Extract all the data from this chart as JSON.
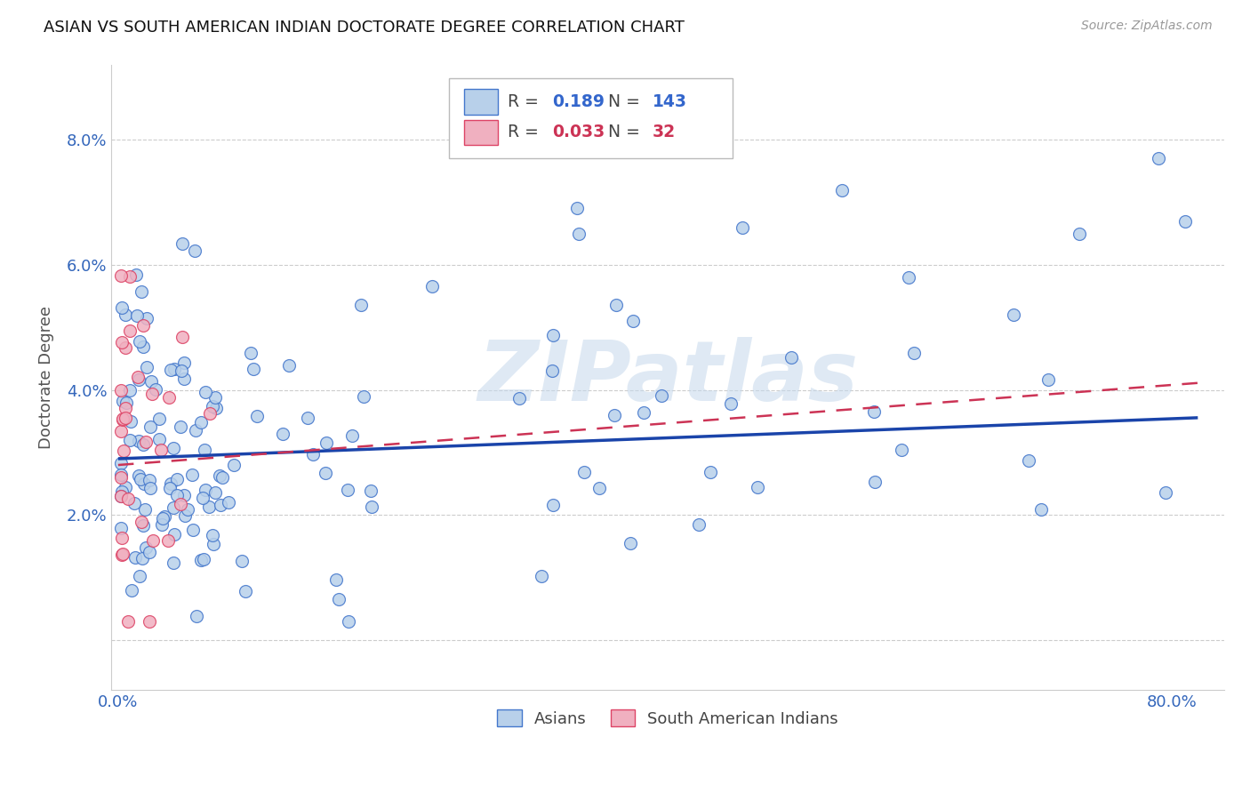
{
  "title": "ASIAN VS SOUTH AMERICAN INDIAN DOCTORATE DEGREE CORRELATION CHART",
  "source": "Source: ZipAtlas.com",
  "ylabel": "Doctorate Degree",
  "xlim": [
    -0.005,
    0.84
  ],
  "ylim": [
    -0.008,
    0.092
  ],
  "yticks": [
    0.0,
    0.02,
    0.04,
    0.06,
    0.08
  ],
  "ytick_labels": [
    "",
    "2.0%",
    "4.0%",
    "6.0%",
    "8.0%"
  ],
  "xtick_positions": [
    0.0,
    0.1,
    0.2,
    0.3,
    0.4,
    0.5,
    0.6,
    0.7,
    0.8
  ],
  "xtick_labels": [
    "0.0%",
    "",
    "",
    "",
    "",
    "",
    "",
    "",
    "80.0%"
  ],
  "asian_R": 0.189,
  "asian_N": 143,
  "sai_R": 0.033,
  "sai_N": 32,
  "asian_face_color": "#b8d0ea",
  "asian_edge_color": "#4477cc",
  "asian_line_color": "#1a44aa",
  "sai_face_color": "#f0b0c0",
  "sai_edge_color": "#dd4466",
  "sai_line_color": "#cc3355",
  "legend_blue": "#3366cc",
  "legend_pink": "#cc3355",
  "watermark_color": "#c5d8ec",
  "background_color": "#ffffff",
  "grid_color": "#cccccc",
  "title_color": "#111111",
  "axis_tick_color": "#3366bb",
  "ylabel_color": "#555555",
  "source_color": "#999999",
  "legend_text_color": "#444444",
  "asian_line_intercept": 0.029,
  "asian_line_slope": 0.008,
  "sai_line_intercept": 0.028,
  "sai_line_slope": 0.016
}
